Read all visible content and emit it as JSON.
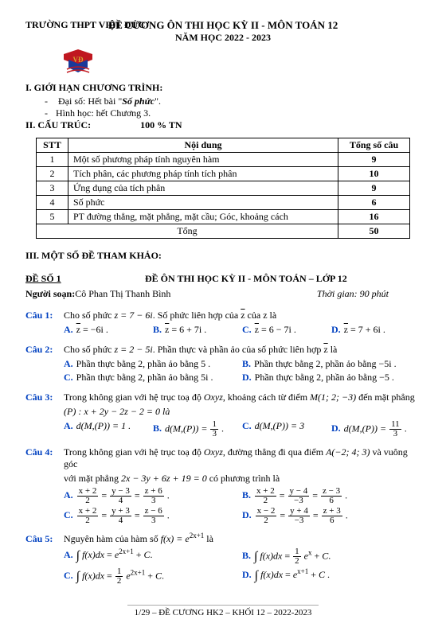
{
  "header": {
    "school": "TRƯỜNG THPT VIỆT ĐỨC",
    "title": "ĐỀ CƯƠNG ÔN THI HỌC KỲ II - MÔN TOÁN 12",
    "year": "NĂM HỌC 2022 - 2023"
  },
  "section1": {
    "heading": "I. GIỚI HẠN CHƯƠNG TRÌNH:",
    "line1_pre": "Đại số: Hết bài \"",
    "line1_bold": "Số phức",
    "line1_post": "\".",
    "line2": "Hình học: hết Chương 3."
  },
  "section2": {
    "heading": "II. CẤU TRÚC:",
    "value": "100 % TN"
  },
  "table": {
    "headers": {
      "c1": "STT",
      "c2": "Nội dung",
      "c3": "Tổng số câu"
    },
    "rows": [
      {
        "stt": "1",
        "nd": "Một số phương pháp tính nguyên hàm",
        "n": "9"
      },
      {
        "stt": "2",
        "nd": "Tích phân, các phương pháp tính tích phân",
        "n": "10"
      },
      {
        "stt": "3",
        "nd": "Ứng dụng của tích phân",
        "n": "9"
      },
      {
        "stt": "4",
        "nd": "Số phức",
        "n": "6"
      },
      {
        "stt": "5",
        "nd": "PT đường thẳng, mặt phẳng, mặt cầu; Góc, khoảng cách",
        "n": "16"
      }
    ],
    "total_label": "Tổng",
    "total_n": "50"
  },
  "section3": {
    "heading": "III. MỘT SỐ ĐỀ THAM KHẢO:"
  },
  "de": {
    "no": "ĐỀ SỐ 1",
    "title": "ĐỀ ÔN THI HỌC KỲ II - MÔN TOÁN – LỚP 12"
  },
  "author": {
    "label": "Người soạn:",
    "name": " Cô Phan Thị Thanh Bình",
    "time": "Thời gian: 90 phút"
  },
  "q1": {
    "label": "Câu 1:",
    "stem_a": "Cho số phức ",
    "stem_b": ". Số phức liên hợp của ",
    "stem_c": " của z là",
    "z": "z = 7 − 6i",
    "optA": " = −6i .",
    "optB": " = 6 + 7i .",
    "optC": " = 6 − 7i .",
    "optD": " = 7 + 6i ."
  },
  "q2": {
    "label": "Câu 2:",
    "stem_a": "Cho số phức ",
    "z": "z = 2 − 5i",
    "stem_b": ". Phần thực và phần ảo của số phức liên hợp ",
    "stem_c": " là",
    "optA": "Phần thực bằng 2, phần ảo bằng 5 .",
    "optB": "Phần thực bằng 2, phần ảo bằng −5i .",
    "optC": "Phần thực bằng 2, phần ảo bằng 5i .",
    "optD": "Phần thực bằng 2, phần ảo bằng −5 ."
  },
  "q3": {
    "label": "Câu 3:",
    "stem_a": "Trong không gian với hệ trục toạ độ ",
    "oxyz": "Oxyz",
    "stem_b": ", khoảng cách từ điểm ",
    "M": "M(1; 2; −3)",
    "stem_c": " đến mặt phẳng",
    "plane": "(P) : x + 2y − 2z − 2 = 0 là",
    "optA_pre": "d(M,(P)) = 1 .",
    "optB_pre": "d(M,(P)) = ",
    "optB_num": "1",
    "optB_den": "3",
    "optC_pre": "d(M,(P)) = 3",
    "optD_pre": "d(M,(P)) = ",
    "optD_num": "11",
    "optD_den": "3"
  },
  "q4": {
    "label": "Câu 4:",
    "stem_a": "Trong không gian với hệ trục toạ độ ",
    "oxyz": "Oxyz",
    "stem_b": ", đường thẳng đi qua điểm ",
    "A": "A(−2; 4; 3)",
    "stem_c": " và vuông góc",
    "stem_d": "với mặt phẳng ",
    "plane": "2x − 3y + 6z + 19 = 0",
    "stem_e": " có phương trình là",
    "A1n": "x + 2",
    "A1d": "2",
    "A2n": "y − 3",
    "A2d": "4",
    "A3n": "z + 6",
    "A3d": "3",
    "B1n": "x + 2",
    "B1d": "2",
    "B2n": "y − 4",
    "B2d": "−3",
    "B3n": "z − 3",
    "B3d": "6",
    "C1n": "x + 2",
    "C1d": "2",
    "C2n": "y + 3",
    "C2d": "4",
    "C3n": "z − 6",
    "C3d": "3",
    "D1n": "x − 2",
    "D1d": "2",
    "D2n": "y + 4",
    "D2d": "−3",
    "D3n": "z + 3",
    "D3d": "6"
  },
  "q5": {
    "label": "Câu 5:",
    "stem_a": "Nguyên hàm của hàm số ",
    "fx": "f(x) = e",
    "exp": "2x+1",
    "stem_b": " là",
    "Anum": "",
    "optB_num": "1",
    "optB_den": "2",
    "optC_num": "1",
    "optC_den": "2"
  },
  "labels": {
    "A": "A.",
    "B": "B.",
    "C": "C.",
    "D": "D."
  },
  "footer": "1/29 – ĐỀ CƯƠNG HK2 – KHỐI 12 – 2022-2023",
  "colors": {
    "label": "#0040c0",
    "logo_red": "#c01820",
    "logo_blue": "#1a3a9a",
    "logo_gold": "#d4a430"
  }
}
